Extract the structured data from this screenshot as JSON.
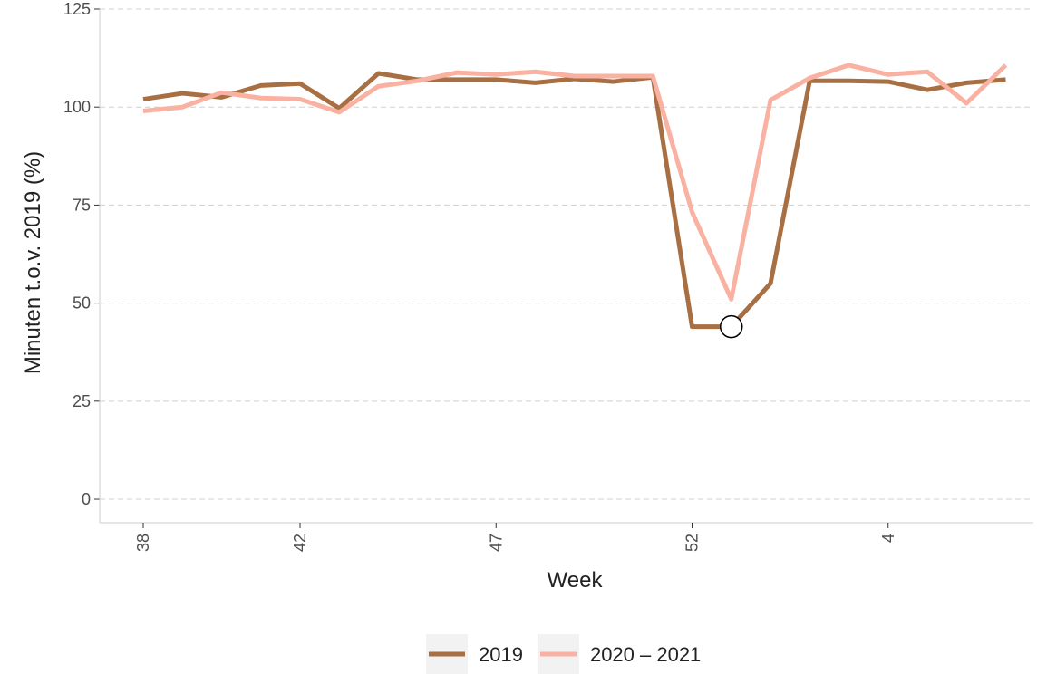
{
  "chart_data": {
    "type": "line",
    "x_label": "Week",
    "y_label": "Minuten t.o.v. 2019 (%)",
    "categories": [
      38,
      null,
      null,
      null,
      42,
      null,
      null,
      null,
      null,
      47,
      null,
      null,
      null,
      null,
      52,
      null,
      null,
      null,
      null,
      4,
      null,
      null,
      null
    ],
    "series": [
      {
        "name": "2019",
        "color": "#a86f43",
        "values": [
          102,
          103.5,
          102.5,
          105.5,
          106,
          99.7,
          108.6,
          107,
          107,
          107,
          106.2,
          107.2,
          106.5,
          107.6,
          44,
          44,
          55,
          106.7,
          106.7,
          106.5,
          104.4,
          106.2,
          107
        ]
      },
      {
        "name": "2020 – 2021",
        "color": "#f9b1a2",
        "values": [
          99,
          100,
          103.7,
          102.3,
          102,
          98.7,
          105.3,
          106.7,
          108.8,
          108.3,
          109,
          107.9,
          107.9,
          107.9,
          73.2,
          51,
          101.8,
          107.4,
          110.7,
          108.3,
          109,
          101,
          110.7
        ]
      }
    ],
    "ylim": [
      -6,
      125
    ],
    "yticks": [
      0,
      25,
      50,
      75,
      100,
      125
    ],
    "grid": true,
    "legend": "bottom"
  }
}
